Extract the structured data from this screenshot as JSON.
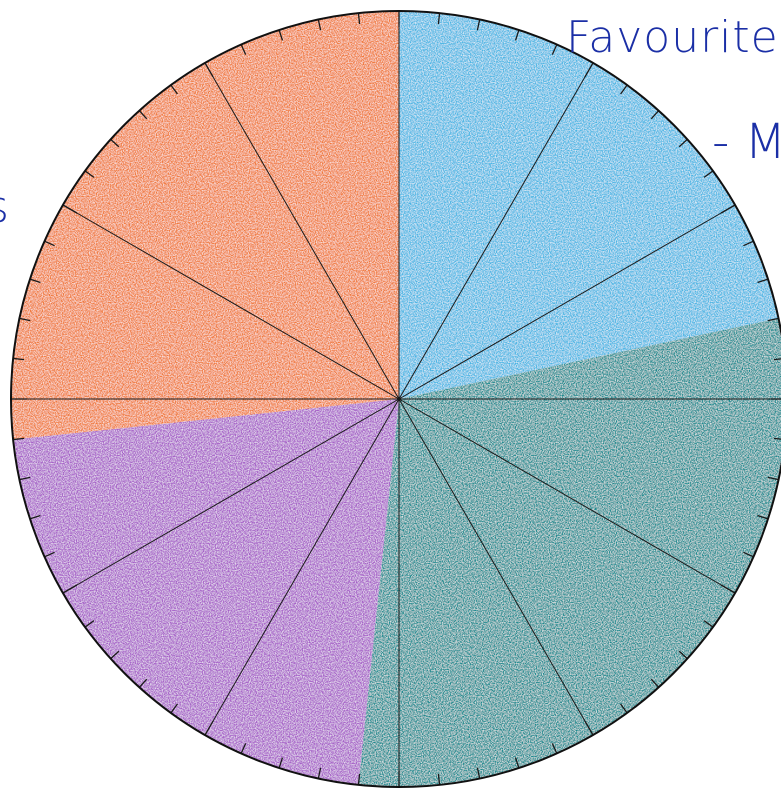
{
  "title": "Favourite",
  "subtitle": "- M",
  "left_fragment": "s",
  "chart_data": {
    "type": "pie",
    "categories": [
      "",
      "",
      "",
      ""
    ],
    "values": [
      13,
      18,
      13,
      16
    ],
    "slices": [
      {
        "label": "",
        "value": 13,
        "color": "#48b6e4"
      },
      {
        "label": "",
        "value": 18,
        "color": "#1f8c91"
      },
      {
        "label": "",
        "value": 13,
        "color": "#a65fc8"
      },
      {
        "label": "",
        "value": 16,
        "color": "#f07a3a"
      }
    ],
    "divisions": 60,
    "grid": true,
    "legend": "none"
  }
}
